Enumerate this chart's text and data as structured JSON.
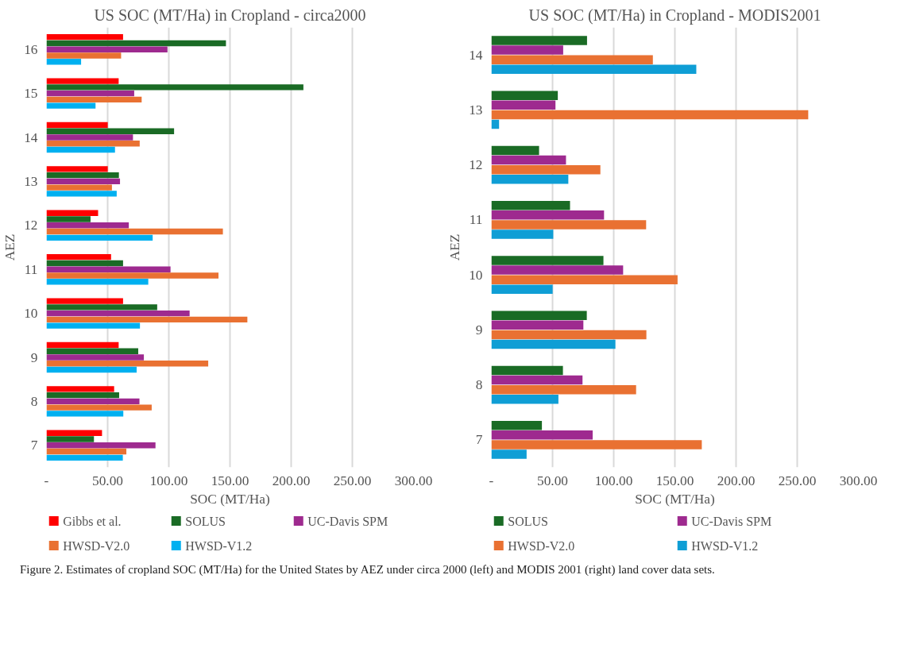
{
  "chart_data": [
    {
      "type": "bar",
      "orientation": "horizontal",
      "title": "US SOC (MT/Ha) in Cropland - circa2000",
      "xlabel": "SOC (MT/Ha)",
      "ylabel": "AEZ",
      "categories": [
        "16",
        "15",
        "14",
        "13",
        "12",
        "11",
        "10",
        "9",
        "8",
        "7"
      ],
      "series": [
        {
          "name": "Gibbs et al.",
          "color": "#ff0000",
          "values": [
            62.6,
            59,
            50.1,
            50.1,
            42.2,
            52.8,
            62.6,
            59,
            55.3,
            45.4
          ]
        },
        {
          "name": "SOLUS",
          "color": "#1a6b25",
          "values": [
            146.7,
            210,
            104.3,
            59.2,
            36,
            62.6,
            90.5,
            75,
            59.4,
            38.8
          ]
        },
        {
          "name": "UC-Davis SPM",
          "color": "#9e2a8f",
          "values": [
            98.9,
            71.7,
            70.7,
            60.1,
            67.3,
            101.4,
            117,
            79.6,
            76,
            89.1
          ]
        },
        {
          "name": "HWSD-V2.0",
          "color": "#e97132",
          "values": [
            61,
            77.8,
            76.2,
            53.5,
            144.2,
            140.6,
            164.2,
            132.2,
            86,
            65.3
          ]
        },
        {
          "name": "HWSD-V1.2",
          "color": "#00b0f0",
          "values": [
            28.3,
            40.1,
            56,
            57.4,
            86.8,
            83.2,
            76.4,
            73.7,
            62.8,
            62.4
          ]
        }
      ],
      "xlim": [
        0,
        300
      ],
      "xticks": [
        {
          "value": 0,
          "label": "-"
        },
        {
          "value": 50,
          "label": "50.00"
        },
        {
          "value": 100,
          "label": "100.00"
        },
        {
          "value": 150,
          "label": "150.00"
        },
        {
          "value": 200,
          "label": "200.00"
        },
        {
          "value": 250,
          "label": "250.00"
        },
        {
          "value": 300,
          "label": "300.00"
        }
      ],
      "grid": "x",
      "legend": "bottom",
      "annotations": [
        "Figure 2. Estimates of cropland SOC (MT/Ha) for the United States by AEZ under circa 2000 (left) and MODIS 2001 (right) land cover data sets."
      ]
    },
    {
      "type": "bar",
      "orientation": "horizontal",
      "title": "US SOC (MT/Ha) in Cropland - MODIS2001",
      "xlabel": "SOC (MT/Ha)",
      "ylabel": "AEZ",
      "categories": [
        "14",
        "13",
        "12",
        "11",
        "10",
        "9",
        "8",
        "7"
      ],
      "series": [
        {
          "name": "SOLUS",
          "color": "#1a6b25",
          "values": [
            78.2,
            54.3,
            39,
            64.3,
            91.6,
            78,
            58.5,
            41.3
          ]
        },
        {
          "name": "UC-Davis SPM",
          "color": "#9e2a8f",
          "values": [
            58.7,
            52.4,
            61,
            92.1,
            107.7,
            75.2,
            74.5,
            82.8
          ]
        },
        {
          "name": "HWSD-V2.0",
          "color": "#e97132",
          "values": [
            132,
            259,
            89.1,
            126.5,
            152.2,
            126.7,
            118.3,
            172
          ]
        },
        {
          "name": "HWSD-V1.2",
          "color": "#0f9ed5",
          "values": [
            167.5,
            6.3,
            62.9,
            50.6,
            50.1,
            101.4,
            54.8,
            28.8
          ]
        }
      ],
      "xlim": [
        0,
        300
      ],
      "xticks": [
        {
          "value": 0,
          "label": "-"
        },
        {
          "value": 50,
          "label": "50.00"
        },
        {
          "value": 100,
          "label": "100.00"
        },
        {
          "value": 150,
          "label": "150.00"
        },
        {
          "value": 200,
          "label": "200.00"
        },
        {
          "value": 250,
          "label": "250.00"
        },
        {
          "value": 300,
          "label": "300.00"
        }
      ],
      "grid": "x",
      "legend": "bottom"
    }
  ]
}
